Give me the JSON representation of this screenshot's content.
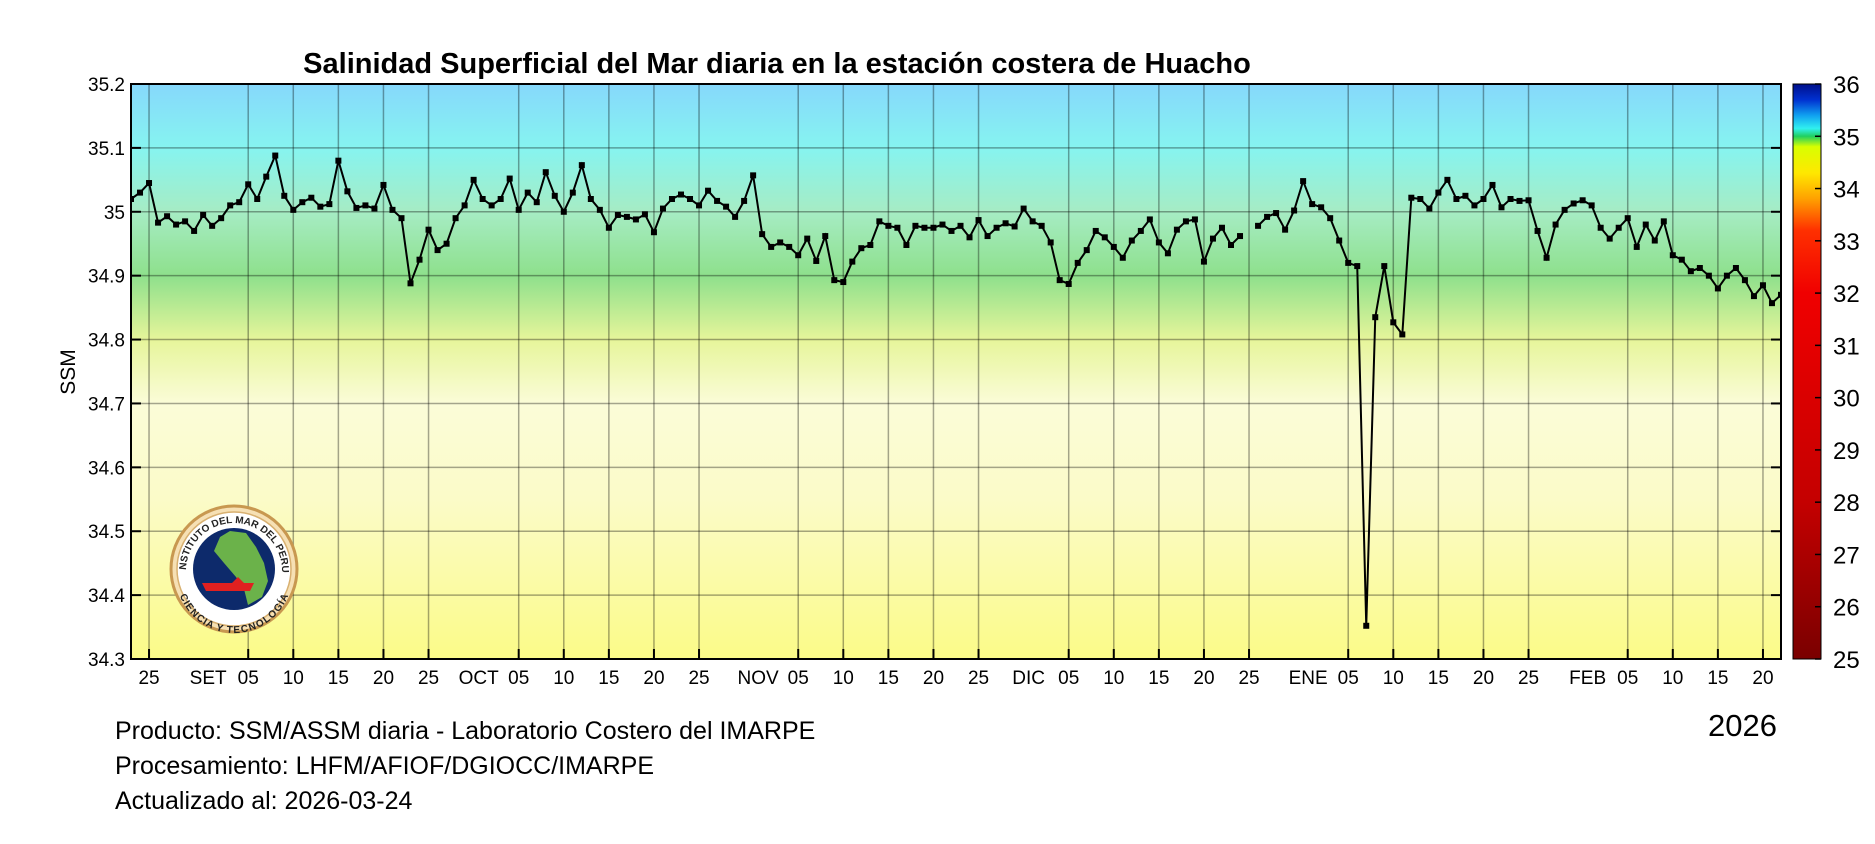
{
  "chart_data": {
    "type": "line",
    "title": "Salinidad Superficial del Mar diaria en la estación costera de Huacho",
    "ylabel": "SSM",
    "ylim": [
      34.3,
      35.2
    ],
    "yticks": [
      "34.3",
      "34.4",
      "34.5",
      "34.6",
      "34.7",
      "34.8",
      "34.9",
      "35",
      "35.1",
      "35.2"
    ],
    "xlim": [
      "2025-08-23",
      "2026-02-22"
    ],
    "year_label": "2026",
    "grid": true,
    "legend": "none",
    "line_color": "#000000",
    "background_gradient": [
      {
        "value": 35.2,
        "color": "#86d8fc"
      },
      {
        "value": 35.1,
        "color": "#86f4f0"
      },
      {
        "value": 35.0,
        "color": "#a6ecc4"
      },
      {
        "value": 34.9,
        "color": "#8ee08c"
      },
      {
        "value": 34.8,
        "color": "#e6f59a"
      },
      {
        "value": 34.7,
        "color": "#fbfcd8"
      },
      {
        "value": 34.55,
        "color": "#fbfbc8"
      },
      {
        "value": 34.3,
        "color": "#fbfb88"
      }
    ],
    "xticks": [
      {
        "date": "2025-08-25",
        "label": "25"
      },
      {
        "date": "2025-09-01",
        "label": "SET"
      },
      {
        "date": "2025-09-05",
        "label": "05"
      },
      {
        "date": "2025-09-10",
        "label": "10"
      },
      {
        "date": "2025-09-15",
        "label": "15"
      },
      {
        "date": "2025-09-20",
        "label": "20"
      },
      {
        "date": "2025-09-25",
        "label": "25"
      },
      {
        "date": "2025-10-01",
        "label": "OCT"
      },
      {
        "date": "2025-10-05",
        "label": "05"
      },
      {
        "date": "2025-10-10",
        "label": "10"
      },
      {
        "date": "2025-10-15",
        "label": "15"
      },
      {
        "date": "2025-10-20",
        "label": "20"
      },
      {
        "date": "2025-10-25",
        "label": "25"
      },
      {
        "date": "2025-11-01",
        "label": "NOV"
      },
      {
        "date": "2025-11-05",
        "label": "05"
      },
      {
        "date": "2025-11-10",
        "label": "10"
      },
      {
        "date": "2025-11-15",
        "label": "15"
      },
      {
        "date": "2025-11-20",
        "label": "20"
      },
      {
        "date": "2025-11-25",
        "label": "25"
      },
      {
        "date": "2025-12-01",
        "label": "DIC"
      },
      {
        "date": "2025-12-05",
        "label": "05"
      },
      {
        "date": "2025-12-10",
        "label": "10"
      },
      {
        "date": "2025-12-15",
        "label": "15"
      },
      {
        "date": "2025-12-20",
        "label": "20"
      },
      {
        "date": "2025-12-25",
        "label": "25"
      },
      {
        "date": "2026-01-01",
        "label": "ENE"
      },
      {
        "date": "2026-01-05",
        "label": "05"
      },
      {
        "date": "2026-01-10",
        "label": "10"
      },
      {
        "date": "2026-01-15",
        "label": "15"
      },
      {
        "date": "2026-01-20",
        "label": "20"
      },
      {
        "date": "2026-01-25",
        "label": "25"
      },
      {
        "date": "2026-02-01",
        "label": "FEB"
      },
      {
        "date": "2026-02-05",
        "label": "05"
      },
      {
        "date": "2026-02-10",
        "label": "10"
      },
      {
        "date": "2026-02-15",
        "label": "15"
      },
      {
        "date": "2026-02-20",
        "label": "20"
      }
    ],
    "series": [
      {
        "x": [
          "2025-08-23",
          "2025-08-24",
          "2025-08-25",
          "2025-08-26",
          "2025-08-27",
          "2025-08-28",
          "2025-08-29",
          "2025-08-30",
          "2025-08-31",
          "2025-09-01",
          "2025-09-02",
          "2025-09-03",
          "2025-09-04",
          "2025-09-05",
          "2025-09-06",
          "2025-09-07",
          "2025-09-08",
          "2025-09-09",
          "2025-09-10",
          "2025-09-11",
          "2025-09-12",
          "2025-09-13",
          "2025-09-14",
          "2025-09-15",
          "2025-09-16",
          "2025-09-17",
          "2025-09-18",
          "2025-09-19",
          "2025-09-20",
          "2025-09-21",
          "2025-09-22",
          "2025-09-23",
          "2025-09-24",
          "2025-09-25",
          "2025-09-26",
          "2025-09-27",
          "2025-09-28",
          "2025-09-29",
          "2025-09-30",
          "2025-10-01",
          "2025-10-02",
          "2025-10-03",
          "2025-10-04",
          "2025-10-05",
          "2025-10-06",
          "2025-10-07",
          "2025-10-08",
          "2025-10-09",
          "2025-10-10",
          "2025-10-11",
          "2025-10-12",
          "2025-10-13",
          "2025-10-14",
          "2025-10-15",
          "2025-10-16",
          "2025-10-17",
          "2025-10-18",
          "2025-10-19",
          "2025-10-20",
          "2025-10-21",
          "2025-10-22",
          "2025-10-23",
          "2025-10-24",
          "2025-10-25",
          "2025-10-26",
          "2025-10-27",
          "2025-10-28",
          "2025-10-29",
          "2025-10-30",
          "2025-10-31",
          "2025-11-01",
          "2025-11-02",
          "2025-11-03",
          "2025-11-04",
          "2025-11-05",
          "2025-11-06",
          "2025-11-07",
          "2025-11-08",
          "2025-11-09",
          "2025-11-10",
          "2025-11-11",
          "2025-11-12",
          "2025-11-13",
          "2025-11-14",
          "2025-11-15",
          "2025-11-16",
          "2025-11-17",
          "2025-11-18",
          "2025-11-19",
          "2025-11-20",
          "2025-11-21",
          "2025-11-22",
          "2025-11-23",
          "2025-11-24",
          "2025-11-25",
          "2025-11-26",
          "2025-11-27",
          "2025-11-28",
          "2025-11-29",
          "2025-11-30",
          "2025-12-01",
          "2025-12-02",
          "2025-12-03",
          "2025-12-04",
          "2025-12-05",
          "2025-12-06",
          "2025-12-07",
          "2025-12-08",
          "2025-12-09",
          "2025-12-10",
          "2025-12-11",
          "2025-12-12",
          "2025-12-13",
          "2025-12-14",
          "2025-12-15",
          "2025-12-16",
          "2025-12-17",
          "2025-12-18",
          "2025-12-19",
          "2025-12-20",
          "2025-12-21",
          "2025-12-22",
          "2025-12-23",
          "2025-12-24"
        ],
        "values": [
          35.02,
          35.03,
          35.045,
          34.983,
          34.993,
          34.98,
          34.985,
          34.97,
          34.995,
          34.978,
          34.99,
          35.01,
          35.015,
          35.043,
          35.02,
          35.055,
          35.088,
          35.025,
          35.003,
          35.015,
          35.022,
          35.008,
          35.012,
          35.08,
          35.032,
          35.006,
          35.01,
          35.005,
          35.042,
          35.003,
          34.99,
          34.888,
          34.925,
          34.972,
          34.94,
          34.95,
          34.99,
          35.01,
          35.05,
          35.02,
          35.01,
          35.02,
          35.052,
          35.003,
          35.03,
          35.015,
          35.062,
          35.025,
          35.0,
          35.03,
          35.073,
          35.02,
          35.003,
          34.975,
          34.995,
          34.992,
          34.988,
          34.996,
          34.968,
          35.005,
          35.02,
          35.027,
          35.02,
          35.01,
          35.033,
          35.017,
          35.008,
          34.992,
          35.017,
          35.057,
          34.965,
          34.945,
          34.952,
          34.945,
          34.932,
          34.958,
          34.923,
          34.962,
          34.893,
          34.89,
          34.922,
          34.943,
          34.948,
          34.985,
          34.978,
          34.975,
          34.948,
          34.978,
          34.975,
          34.975,
          34.98,
          34.97,
          34.978,
          34.96,
          34.987,
          34.962,
          34.975,
          34.982,
          34.977,
          35.005,
          34.985,
          34.978,
          34.952,
          34.893,
          34.887,
          34.92,
          34.94,
          34.97,
          34.96,
          34.945,
          34.928,
          34.955,
          34.97,
          34.988,
          34.952,
          34.935,
          34.972,
          34.985,
          34.988,
          34.922,
          34.958,
          34.975,
          34.948,
          34.962
        ]
      },
      {
        "x": [
          "2025-12-26",
          "2025-12-27",
          "2025-12-28",
          "2025-12-29",
          "2025-12-30",
          "2025-12-31",
          "2026-01-01",
          "2026-01-02",
          "2026-01-03",
          "2026-01-04",
          "2026-01-05",
          "2026-01-06",
          "2026-01-07",
          "2026-01-08",
          "2026-01-09",
          "2026-01-10",
          "2026-01-11",
          "2026-01-12",
          "2026-01-13",
          "2026-01-14",
          "2026-01-15",
          "2026-01-16",
          "2026-01-17",
          "2026-01-18",
          "2026-01-19",
          "2026-01-20",
          "2026-01-21",
          "2026-01-22",
          "2026-01-23",
          "2026-01-24",
          "2026-01-25",
          "2026-01-26",
          "2026-01-27",
          "2026-01-28",
          "2026-01-29",
          "2026-01-30",
          "2026-01-31",
          "2026-02-01",
          "2026-02-02",
          "2026-02-03",
          "2026-02-04",
          "2026-02-05",
          "2026-02-06",
          "2026-02-07",
          "2026-02-08",
          "2026-02-09",
          "2026-02-10",
          "2026-02-11",
          "2026-02-12",
          "2026-02-13",
          "2026-02-14",
          "2026-02-15",
          "2026-02-16",
          "2026-02-17",
          "2026-02-18",
          "2026-02-19",
          "2026-02-20",
          "2026-02-21",
          "2026-02-22"
        ],
        "values": [
          34.978,
          34.992,
          34.998,
          34.972,
          35.002,
          35.048,
          35.012,
          35.007,
          34.99,
          34.955,
          34.92,
          34.915,
          34.352,
          34.835,
          34.915,
          34.827,
          34.808,
          35.022,
          35.02,
          35.005,
          35.03,
          35.05,
          35.02,
          35.025,
          35.01,
          35.02,
          35.042,
          35.007,
          35.02,
          35.017,
          35.018,
          34.97,
          34.928,
          34.98,
          35.003,
          35.013,
          35.018,
          35.01,
          34.975,
          34.958,
          34.975,
          34.99,
          34.945,
          34.98,
          34.955,
          34.985,
          34.932,
          34.925,
          34.907,
          34.912,
          34.9,
          34.88,
          34.9,
          34.912,
          34.893,
          34.868,
          34.885,
          34.857,
          34.87
        ]
      }
    ],
    "colorbar": {
      "ticks": [
        "25",
        "26",
        "27",
        "28",
        "29",
        "30",
        "31",
        "32",
        "33",
        "34",
        "35",
        "36"
      ],
      "range": [
        25,
        36
      ],
      "colors": [
        {
          "value": 25,
          "color": "#7a0000"
        },
        {
          "value": 28,
          "color": "#c40000"
        },
        {
          "value": 32,
          "color": "#f00000"
        },
        {
          "value": 33.2,
          "color": "#ff3000"
        },
        {
          "value": 33.8,
          "color": "#ffa000"
        },
        {
          "value": 34.3,
          "color": "#ffe800"
        },
        {
          "value": 34.8,
          "color": "#d8ff00"
        },
        {
          "value": 35.0,
          "color": "#20d060"
        },
        {
          "value": 35.15,
          "color": "#30f0f0"
        },
        {
          "value": 35.4,
          "color": "#10a0f0"
        },
        {
          "value": 35.7,
          "color": "#0030d0"
        },
        {
          "value": 36,
          "color": "#00108a"
        }
      ]
    }
  },
  "logo": {
    "text_top": "INSTITUTO DEL MAR DEL PERU",
    "text_bottom": "CIENCIA Y TECNOLOGÍA"
  },
  "footer": {
    "product": "Producto: SSM/ASSM diaria - Laboratorio Costero del IMARPE",
    "processing": "Procesamiento: LHFM/AFIOF/DGIOCC/IMARPE",
    "updated": "Actualizado al: 2026-03-24"
  }
}
